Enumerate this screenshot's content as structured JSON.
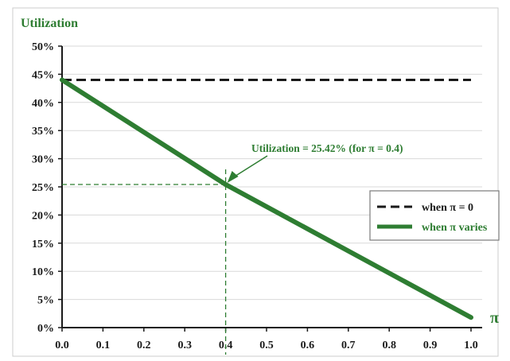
{
  "chart_data": {
    "type": "line",
    "ylabel": "Utilization",
    "xlabel": "π",
    "xlim": [
      0.0,
      1.0
    ],
    "ylim": [
      0,
      50
    ],
    "x_ticks": [
      "0.0",
      "0.1",
      "0.2",
      "0.3",
      "0.4",
      "0.5",
      "0.6",
      "0.7",
      "0.8",
      "0.9",
      "1.0"
    ],
    "y_ticks": [
      "0%",
      "5%",
      "10%",
      "15%",
      "20%",
      "25%",
      "30%",
      "35%",
      "40%",
      "45%",
      "50%"
    ],
    "grid": true,
    "legend_position": "right",
    "series": [
      {
        "name": "when π = 0",
        "style": "dashed",
        "color": "#1a1a1a",
        "x": [
          0.0,
          1.0
        ],
        "y": [
          44,
          44
        ]
      },
      {
        "name": "when π varies",
        "style": "solid",
        "color": "#2e7d32",
        "x": [
          0.0,
          0.4,
          1.0
        ],
        "y": [
          44,
          25.42,
          1.8
        ]
      }
    ],
    "annotation": {
      "text": "Utilization = 25.42% (for π = 0.4)",
      "x": 0.4,
      "y": 25.42
    }
  }
}
